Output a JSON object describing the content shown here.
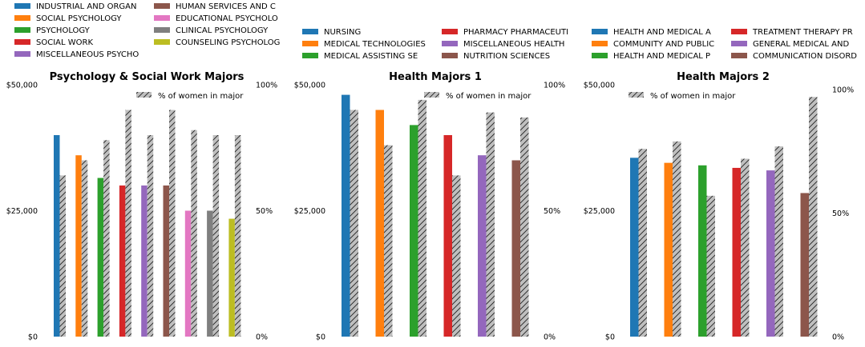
{
  "chart_data": [
    {
      "type": "bar",
      "title": "Psychology & Social Work Majors",
      "categories": [
        "INDUSTRIAL AND ORGAN",
        "SOCIAL PSYCHOLOGY",
        "PSYCHOLOGY",
        "SOCIAL WORK",
        "MISCELLANEOUS PSYCHO",
        "HUMAN SERVICES AND C",
        "EDUCATIONAL PSYCHOLO",
        "CLINICAL PSYCHOLOGY",
        "COUNSELING PSYCHOLOG"
      ],
      "colors": [
        "#1f77b4",
        "#ff7f0e",
        "#2ca02c",
        "#d62728",
        "#9467bd",
        "#8c564b",
        "#e377c2",
        "#7f7f7f",
        "#bcbd22"
      ],
      "series": [
        {
          "name": "",
          "axis": "left",
          "values": [
            40000,
            36000,
            31500,
            30000,
            30000,
            30000,
            25000,
            25000,
            23400
          ]
        },
        {
          "name": "% of women in major",
          "axis": "right",
          "values": [
            64,
            70,
            78,
            90,
            80,
            90,
            82,
            80,
            80
          ]
        }
      ],
      "ylim_left": [
        0,
        50000
      ],
      "ylim_right": [
        0,
        100
      ],
      "yticks_left": [
        "$0",
        "$25,000",
        "$50,000"
      ],
      "yticks_right": [
        "0%",
        "50%",
        "100%"
      ],
      "legend_position": "upper-right"
    },
    {
      "type": "bar",
      "title": "Health Majors 1",
      "categories": [
        "NURSING",
        "MEDICAL TECHNOLOGIES",
        "MEDICAL ASSISTING SE",
        "PHARMACY PHARMACEUTI",
        "MISCELLANEOUS HEALTH",
        "NUTRITION SCIENCES"
      ],
      "colors": [
        "#1f77b4",
        "#ff7f0e",
        "#2ca02c",
        "#d62728",
        "#9467bd",
        "#8c564b"
      ],
      "series": [
        {
          "name": "",
          "axis": "left",
          "values": [
            48000,
            45000,
            42000,
            40000,
            36000,
            35000
          ]
        },
        {
          "name": "% of women in major",
          "axis": "right",
          "values": [
            90,
            76,
            94,
            64,
            89,
            87
          ]
        }
      ],
      "ylim_left": [
        0,
        50000
      ],
      "ylim_right": [
        0,
        100
      ],
      "yticks_left": [
        "$0",
        "$25,000",
        "$50,000"
      ],
      "yticks_right": [
        "0%",
        "50%",
        "100%"
      ],
      "legend_position": "upper-right"
    },
    {
      "type": "bar",
      "title": "Health Majors 2",
      "categories": [
        "HEALTH AND MEDICAL A",
        "COMMUNITY AND PUBLIC",
        "HEALTH AND MEDICAL P",
        "TREATMENT THERAPY PR",
        "GENERAL MEDICAL AND",
        "COMMUNICATION DISORD"
      ],
      "colors": [
        "#1f77b4",
        "#ff7f0e",
        "#2ca02c",
        "#d62728",
        "#9467bd",
        "#8c564b"
      ],
      "series": [
        {
          "name": "",
          "axis": "left",
          "values": [
            35500,
            34500,
            34000,
            33500,
            33000,
            28500
          ]
        },
        {
          "name": "% of women in major",
          "axis": "right",
          "values": [
            76,
            79,
            57,
            72,
            77,
            97
          ]
        }
      ],
      "ylim_left": [
        0,
        50000
      ],
      "ylim_right": [
        0,
        100
      ],
      "yticks_left": [
        "$0",
        "$25,000",
        "$50,000"
      ],
      "yticks_right": [
        "0%",
        "50%",
        "100%"
      ],
      "legend_position": "upper-left"
    }
  ]
}
